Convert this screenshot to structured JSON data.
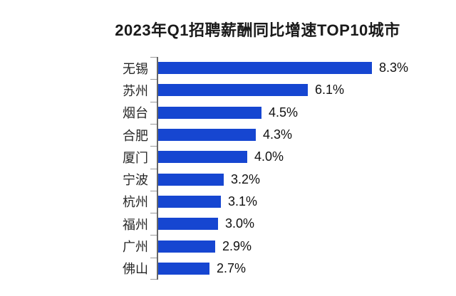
{
  "chart_data": {
    "type": "bar",
    "orientation": "horizontal",
    "title": "2023年Q1招聘薪酬同比增速TOP10城市",
    "categories": [
      "无锡",
      "苏州",
      "烟台",
      "合肥",
      "厦门",
      "宁波",
      "杭州",
      "福州",
      "广州",
      "佛山"
    ],
    "values": [
      8.3,
      6.1,
      4.5,
      4.3,
      4.0,
      3.2,
      3.1,
      3.0,
      2.9,
      2.7
    ],
    "value_labels": [
      "8.3%",
      "6.1%",
      "4.5%",
      "4.3%",
      "4.0%",
      "3.2%",
      "3.1%",
      "3.0%",
      "2.9%",
      "2.7%"
    ],
    "unit": "%",
    "value_axis_visible": false,
    "grid": "off",
    "legend_position": "none",
    "bar_color": "#1646d1",
    "axis_color": "#666666",
    "tick_color": "#9a9a9a",
    "category_label_color": "#262626",
    "value_label_color": "#111111",
    "title_color": "#1a1a1a",
    "background_color": "#ffffff"
  }
}
